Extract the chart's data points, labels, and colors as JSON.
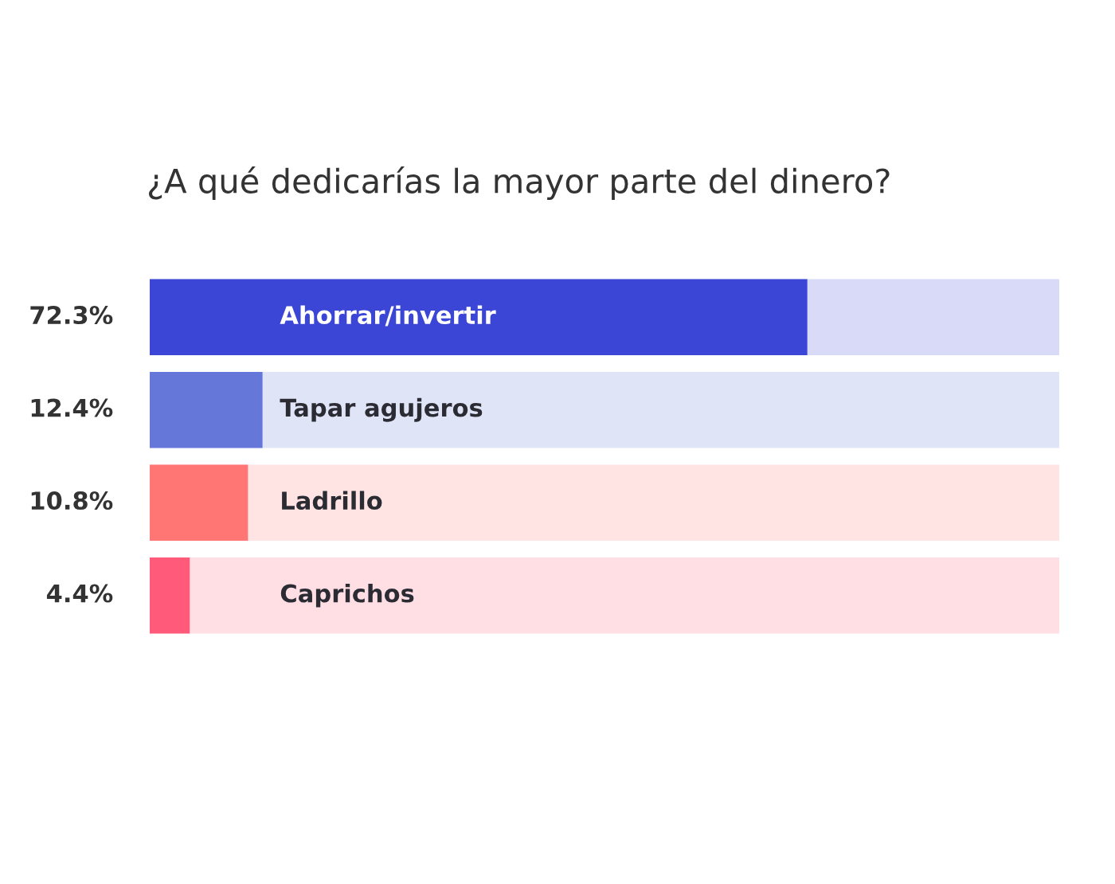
{
  "chart_data": {
    "type": "bar",
    "orientation": "horizontal",
    "title": "¿A qué dedicarías la mayor parte del dinero?",
    "categories": [
      "Ahorrar/invertir",
      "Tapar agujeros",
      "Ladrillo",
      "Caprichos"
    ],
    "values": [
      72.3,
      12.4,
      10.8,
      4.4
    ],
    "value_labels": [
      "72.3%",
      "12.4%",
      "10.8%",
      "4.4%"
    ],
    "colors": [
      "#3b46d6",
      "#6577d9",
      "#ff7675",
      "#ff5a7a"
    ],
    "xlim": [
      0,
      100
    ]
  }
}
